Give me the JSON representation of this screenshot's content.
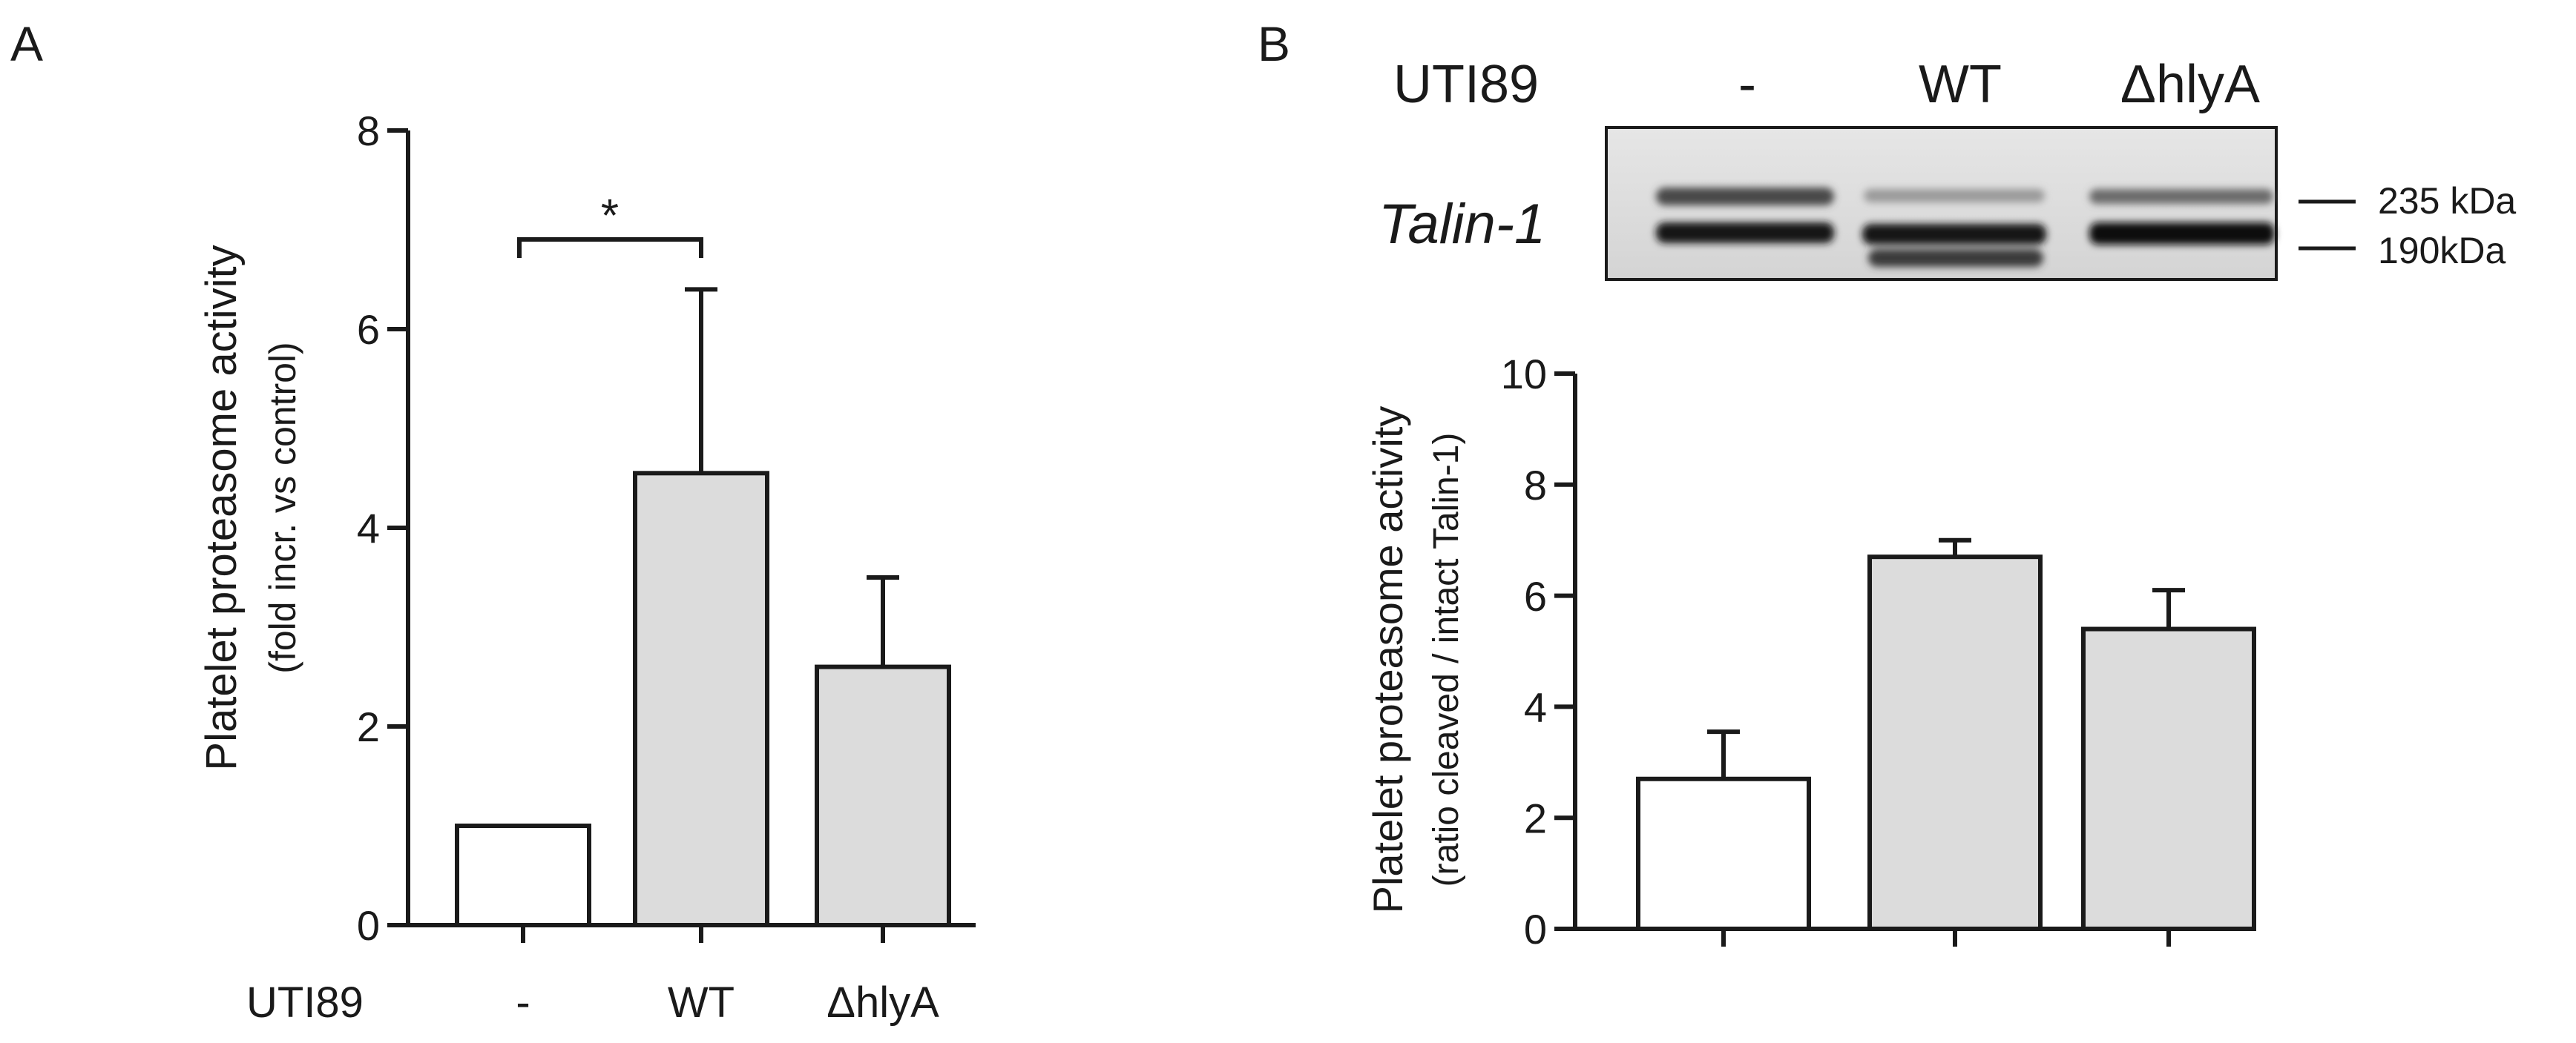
{
  "panel_a": {
    "label": "A",
    "group_title": "UTI89",
    "significance": "*",
    "ylabel_line1": "Platelet proteasome activity",
    "ylabel_line2": "(fold incr. vs control)"
  },
  "panel_b": {
    "label": "B",
    "blot": {
      "group_title": "UTI89",
      "lanes": [
        "-",
        "WT",
        "ΔhlyA"
      ],
      "protein_label": "Talin-1",
      "markers": [
        "235 kDa",
        "190kDa"
      ]
    },
    "ylabel_line1": "Platelet proteasome activity",
    "ylabel_line2": "(ratio cleaved / intact Talin-1)"
  },
  "colors": {
    "bar_control": "#ffffff",
    "bar_treated": "#dcdcdc",
    "stroke": "#1a1a1a"
  },
  "chart_data": [
    {
      "type": "bar",
      "panel": "A",
      "categories": [
        "-",
        "WT",
        "ΔhlyA"
      ],
      "values": [
        1.0,
        4.55,
        2.6
      ],
      "error_upper": [
        0,
        1.85,
        0.9
      ],
      "ylabel": "Platelet proteasome activity (fold incr. vs control)",
      "ylim": [
        0,
        8
      ],
      "yticks": [
        0,
        2,
        4,
        6,
        8
      ],
      "significance": [
        {
          "from": "-",
          "to": "WT",
          "label": "*"
        }
      ]
    },
    {
      "type": "bar",
      "panel": "B",
      "categories": [
        "-",
        "WT",
        "ΔhlyA"
      ],
      "values": [
        2.7,
        6.7,
        5.4
      ],
      "error_upper": [
        0.85,
        0.3,
        0.7
      ],
      "ylabel": "Platelet proteasome activity (ratio cleaved / intact Talin-1)",
      "ylim": [
        0,
        10
      ],
      "yticks": [
        0,
        2,
        4,
        6,
        8,
        10
      ]
    }
  ]
}
